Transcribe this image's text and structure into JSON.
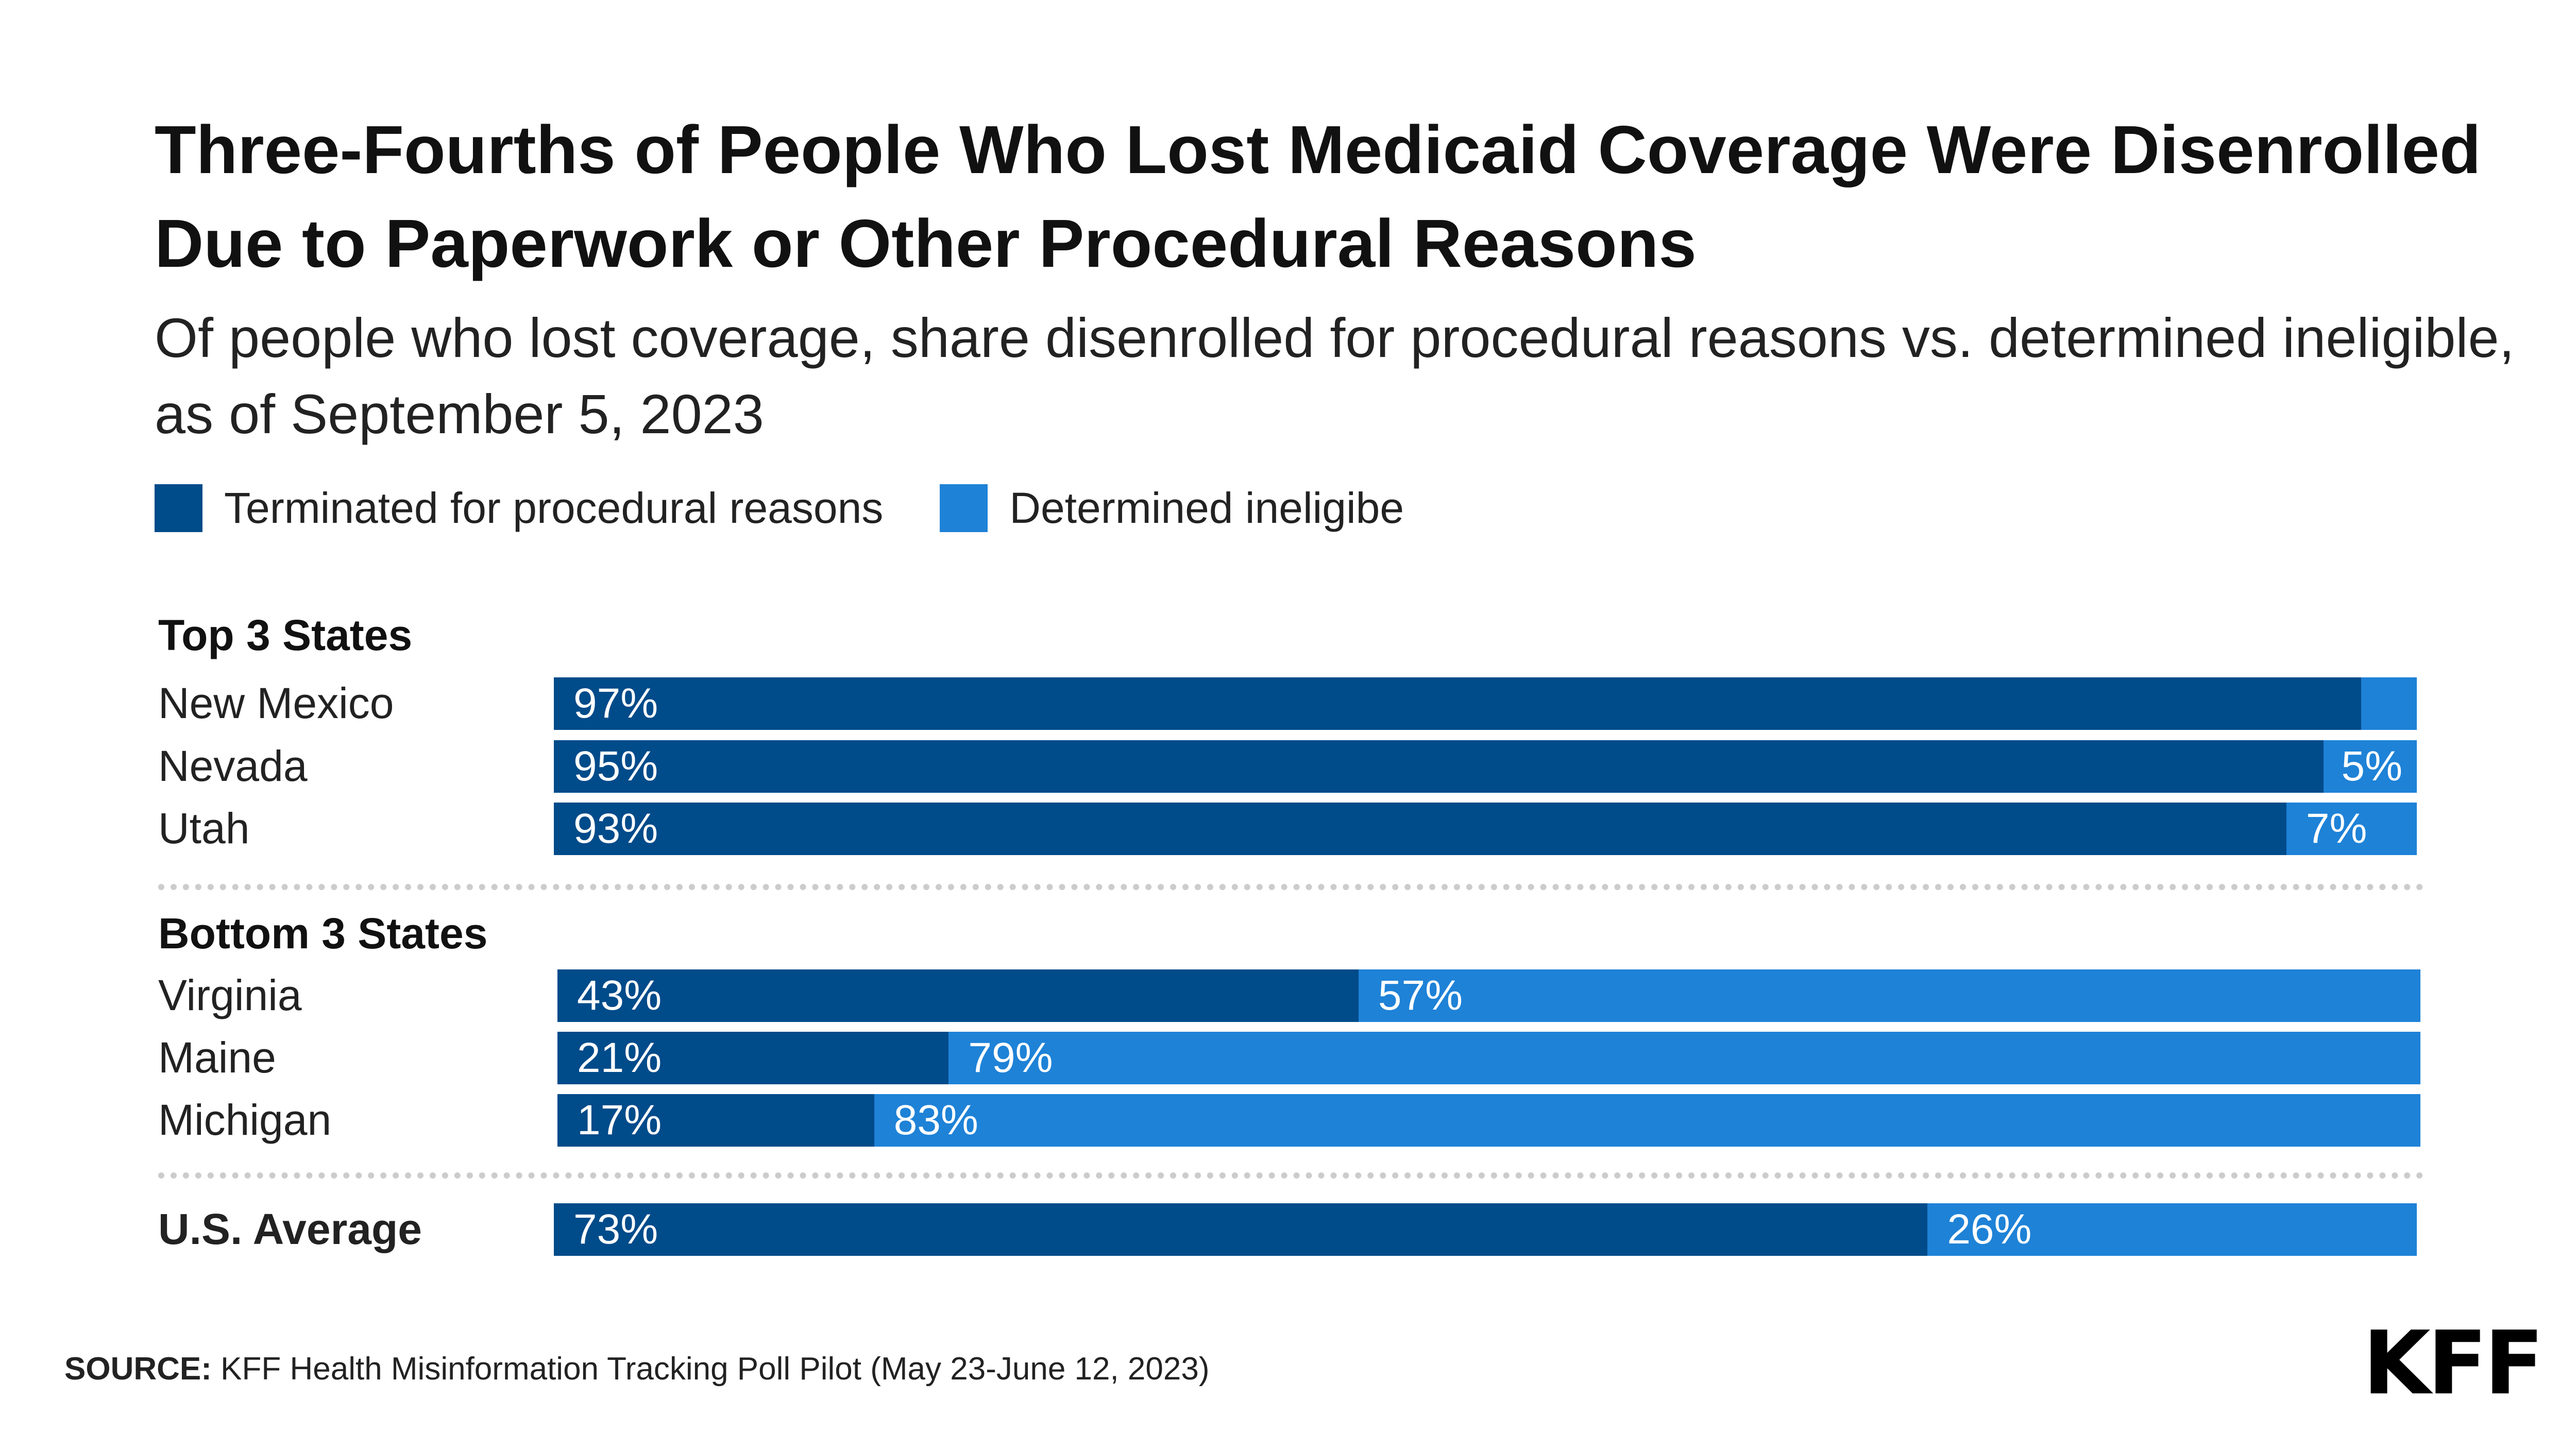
{
  "chart_data": {
    "type": "bar",
    "orientation": "horizontal",
    "stacked": true,
    "title": "Three-Fourths of People Who Lost Medicaid Coverage Were Disenrolled Due to Paperwork or Other Procedural Reasons",
    "subtitle": "Of people who lost coverage, share disenrolled for procedural reasons vs. determined ineligible, as of September 5, 2023",
    "legend_position": "top-left",
    "legend": [
      "Terminated for procedural reasons",
      "Determined ineligibe"
    ],
    "colors": {
      "procedural": "#004b8a",
      "ineligible": "#1e82d7"
    },
    "groups": [
      {
        "name": "Top 3 States",
        "rows": [
          {
            "category": "New Mexico",
            "procedural": 97,
            "ineligible": 3,
            "procedural_label": "97%",
            "ineligible_label": ""
          },
          {
            "category": "Nevada",
            "procedural": 95,
            "ineligible": 5,
            "procedural_label": "95%",
            "ineligible_label": "5%"
          },
          {
            "category": "Utah",
            "procedural": 93,
            "ineligible": 7,
            "procedural_label": "93%",
            "ineligible_label": "7%"
          }
        ]
      },
      {
        "name": "Bottom 3 States",
        "rows": [
          {
            "category": "Virginia",
            "procedural": 43,
            "ineligible": 57,
            "procedural_label": "43%",
            "ineligible_label": "57%"
          },
          {
            "category": "Maine",
            "procedural": 21,
            "ineligible": 79,
            "procedural_label": "21%",
            "ineligible_label": "79%"
          },
          {
            "category": "Michigan",
            "procedural": 17,
            "ineligible": 83,
            "procedural_label": "17%",
            "ineligible_label": "83%"
          }
        ]
      },
      {
        "name": "",
        "rows": [
          {
            "category": "U.S. Average",
            "procedural": 73,
            "ineligible": 26,
            "procedural_label": "73%",
            "ineligible_label": "26%",
            "bold": true
          }
        ]
      }
    ],
    "xlim": [
      0,
      100
    ],
    "grid": false
  },
  "source_label": "SOURCE:",
  "source_text": "KFF Health Misinformation Tracking Poll Pilot (May 23-June 12, 2023)",
  "logo": "KFF"
}
